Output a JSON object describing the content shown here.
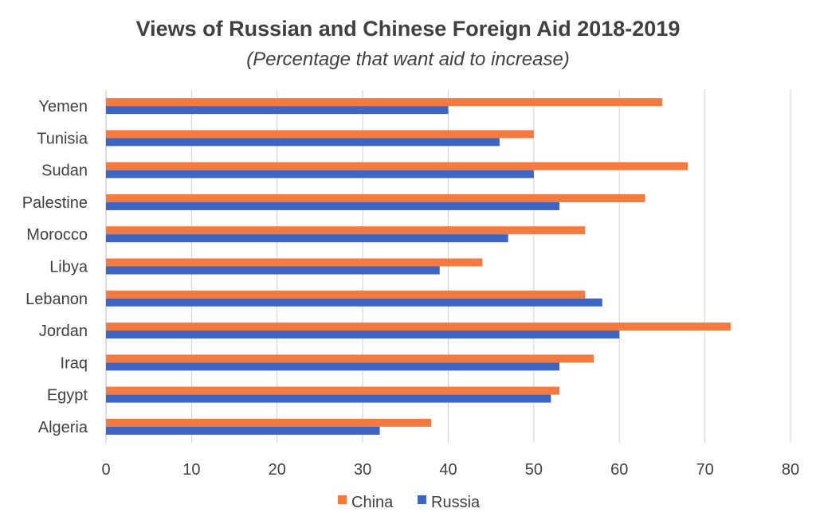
{
  "chart_data": {
    "type": "bar",
    "orientation": "horizontal",
    "title": "Views of Russian and Chinese Foreign Aid 2018-2019",
    "subtitle": "(Percentage that want aid to increase)",
    "categories": [
      "Yemen",
      "Tunisia",
      "Sudan",
      "Palestine",
      "Morocco",
      "Libya",
      "Lebanon",
      "Jordan",
      "Iraq",
      "Egypt",
      "Algeria"
    ],
    "series": [
      {
        "name": "China",
        "color": "#f47a3f",
        "values": [
          65,
          50,
          68,
          63,
          56,
          44,
          56,
          73,
          57,
          53,
          38
        ]
      },
      {
        "name": "Russia",
        "color": "#3d66c4",
        "values": [
          40,
          46,
          50,
          53,
          47,
          39,
          58,
          60,
          53,
          52,
          32
        ]
      }
    ],
    "xlim": [
      0,
      80
    ],
    "xticks": [
      "0",
      "10",
      "20",
      "30",
      "40",
      "50",
      "60",
      "70",
      "80"
    ],
    "grid": true,
    "legend_position": "bottom"
  }
}
